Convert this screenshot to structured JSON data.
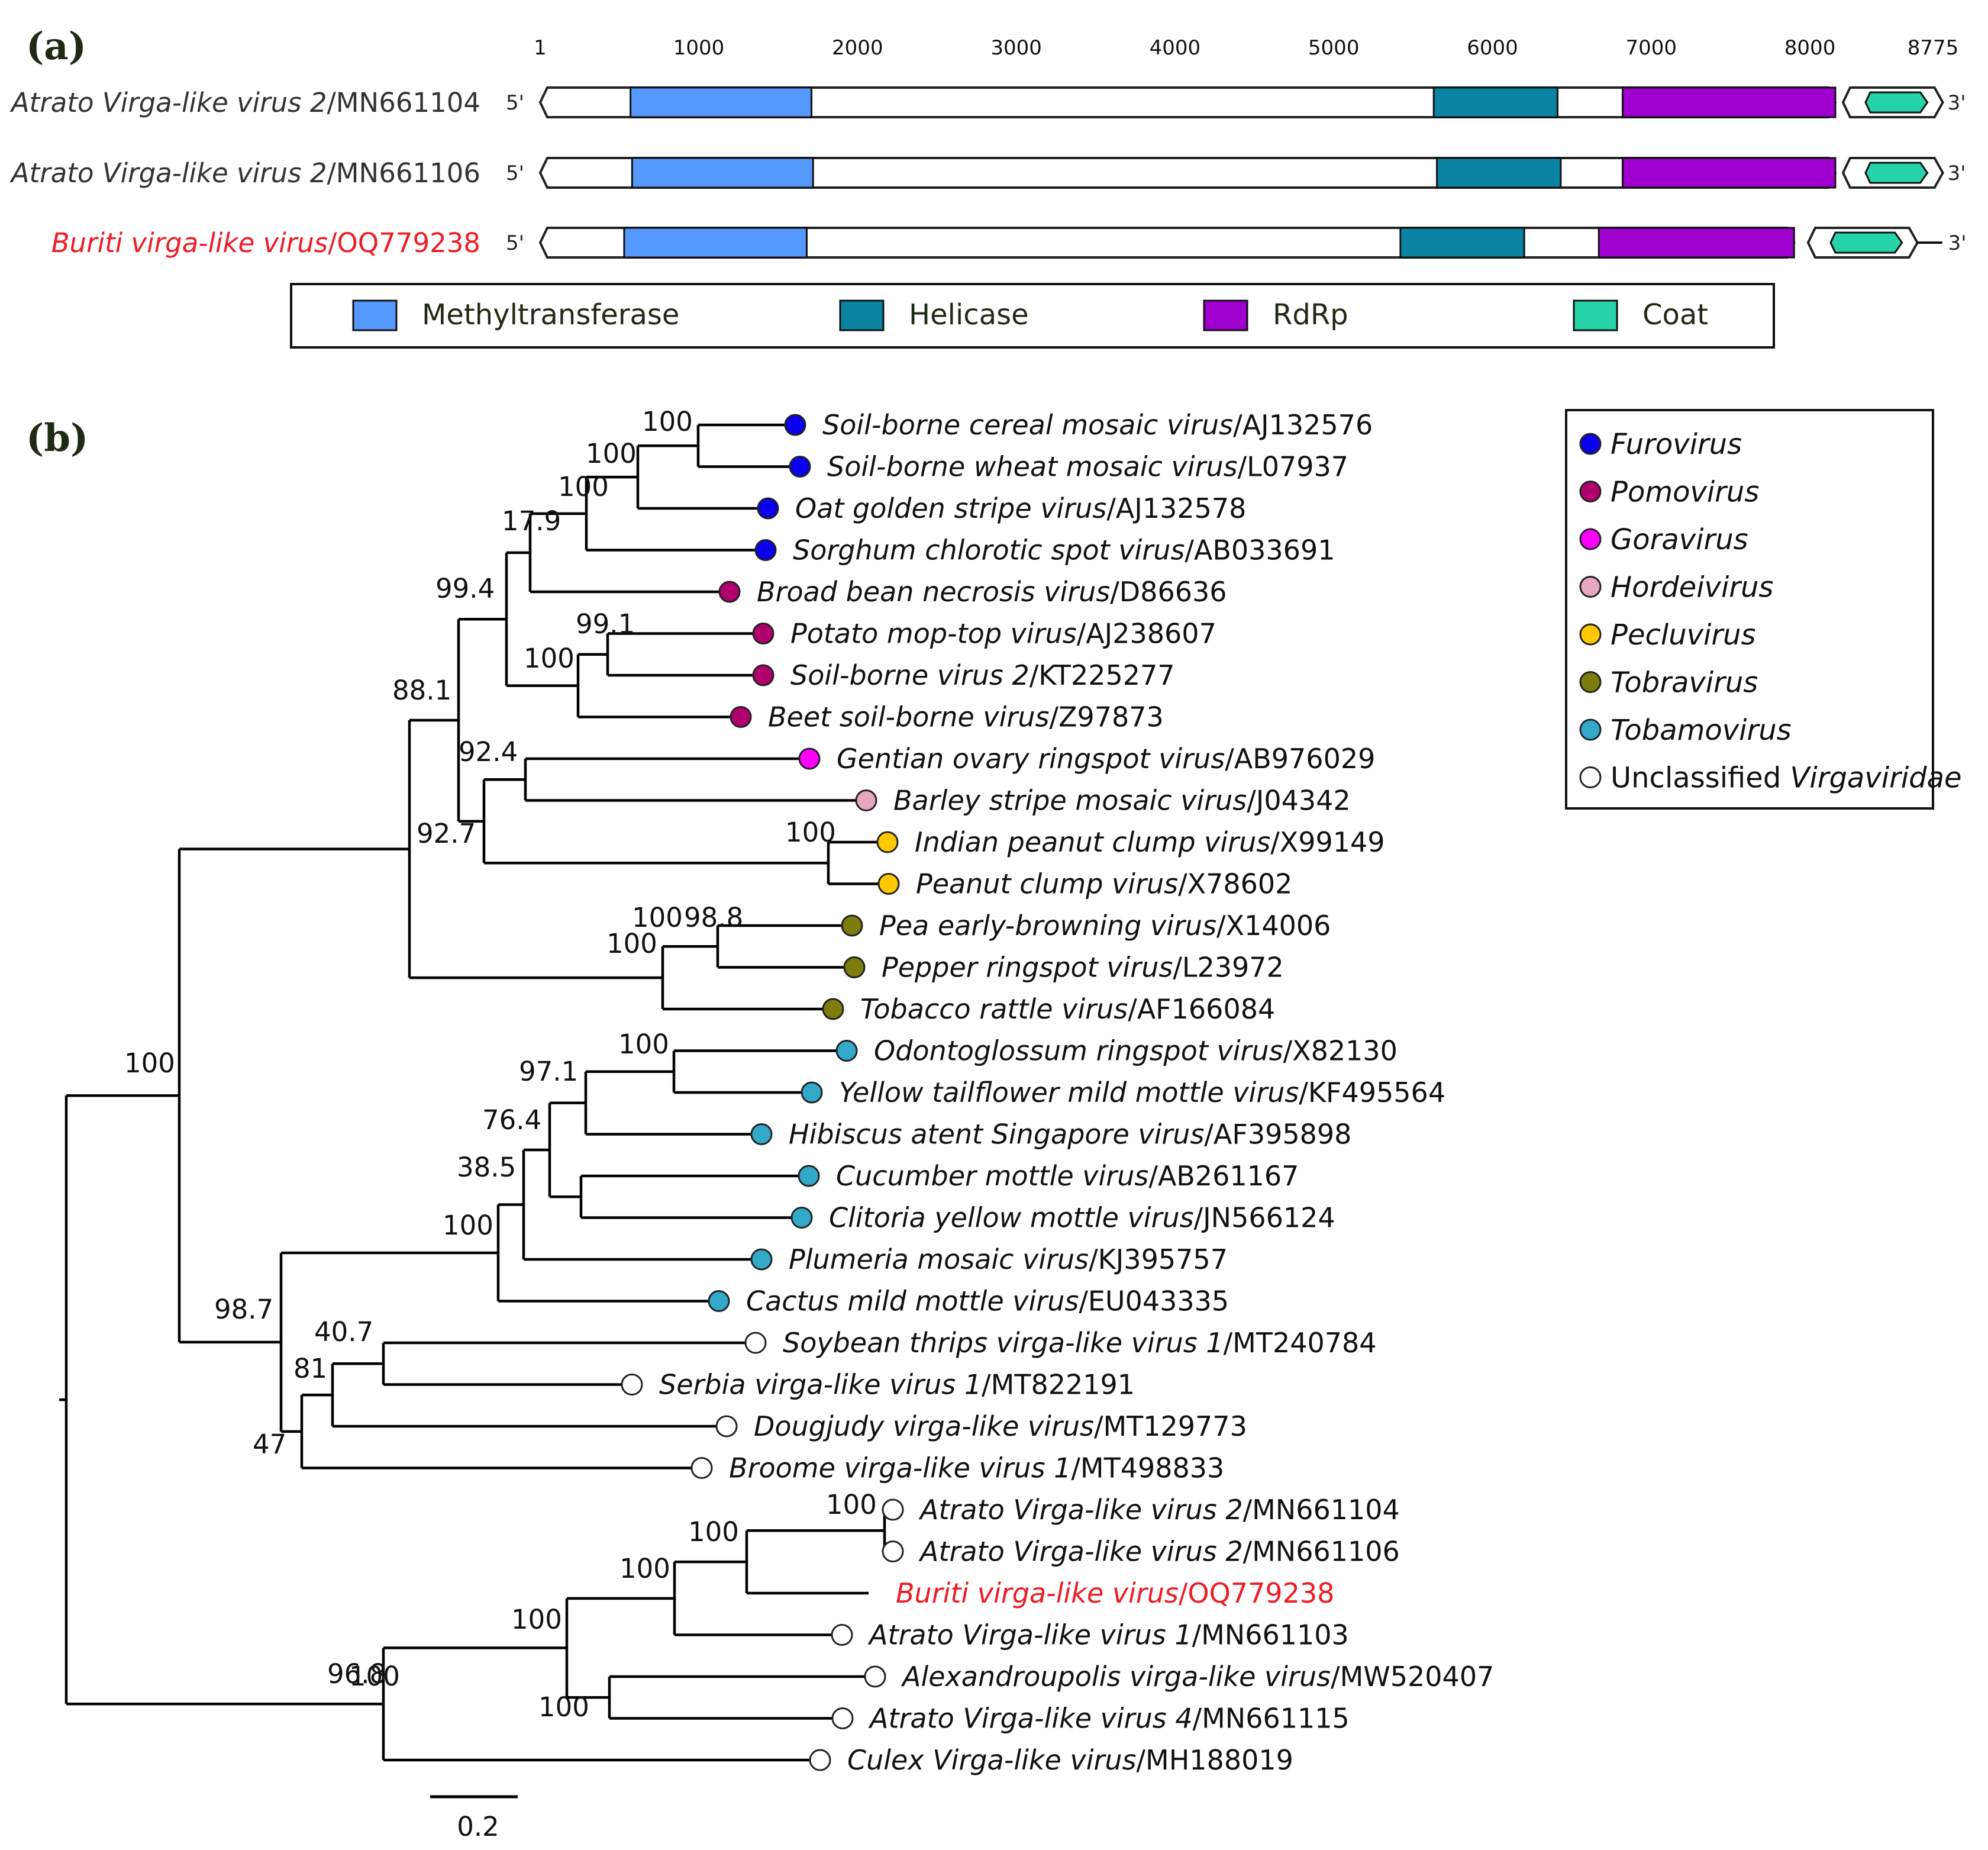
{
  "panel_a": {
    "label": "a",
    "axis_ticks": [
      "1",
      "1000",
      "2000",
      "3000",
      "4000",
      "5000",
      "6000",
      "7000",
      "8000",
      "8775"
    ],
    "five_prime": "5'",
    "three_prime": "3'",
    "genome_length": 8775,
    "genomes": [
      {
        "name": "Atrato Virga-like virus 2",
        "accession": "/MN661104",
        "highlight": false,
        "domains": {
          "methyltransferase": [
            570,
            1710
          ],
          "helicase": [
            5630,
            6410
          ],
          "rdrp": [
            6820,
            8160
          ],
          "coat": [
            8350,
            8740
          ]
        }
      },
      {
        "name": "Atrato Virga-like virus 2",
        "accession": "/MN661106",
        "highlight": false,
        "domains": {
          "methyltransferase": [
            580,
            1720
          ],
          "helicase": [
            5650,
            6430
          ],
          "rdrp": [
            6820,
            8160
          ],
          "coat": [
            8350,
            8740
          ]
        }
      },
      {
        "name": "Buriti virga-like virus",
        "accession": "/OQ779238",
        "highlight": true,
        "domains": {
          "methyltransferase": [
            530,
            1680
          ],
          "helicase": [
            5420,
            6200
          ],
          "rdrp": [
            6670,
            7900
          ],
          "coat": [
            8130,
            8580
          ]
        }
      }
    ],
    "legend": [
      {
        "label": "Methyltransferase",
        "color": "#5599ff"
      },
      {
        "label": "Helicase",
        "color": "#0a84a2"
      },
      {
        "label": "RdRp",
        "color": "#a000d0"
      },
      {
        "label": "Coat",
        "color": "#26d3a8"
      }
    ]
  },
  "panel_b": {
    "label": "b",
    "scale_bar": "0.2",
    "genus_legend": [
      {
        "label": "Furovirus",
        "italic": "Furovirus",
        "plain": "",
        "color": "#0b00ee"
      },
      {
        "label": "Pomovirus",
        "italic": "Pomovirus",
        "plain": "",
        "color": "#b0006e"
      },
      {
        "label": "Goravirus",
        "italic": "Goravirus",
        "plain": "",
        "color": "#ff00ff"
      },
      {
        "label": "Hordeivirus",
        "italic": "Hordeivirus",
        "plain": "",
        "color": "#e9a6c1"
      },
      {
        "label": "Pecluvirus",
        "italic": "Pecluvirus",
        "plain": "",
        "color": "#ffc800"
      },
      {
        "label": "Tobravirus",
        "italic": "Tobravirus",
        "plain": "",
        "color": "#7d7d0e"
      },
      {
        "label": "Tobamovirus",
        "italic": "Tobamovirus",
        "plain": "",
        "color": "#33a9c9"
      },
      {
        "label": "Unclassified Virgaviridae",
        "italic": "Virgaviridae",
        "plain": "Unclassified ",
        "color": "#ffffff"
      }
    ],
    "taxa": [
      {
        "name": "Soil-borne cereal mosaic virus",
        "accession": "/AJ132576",
        "genus": "Furovirus"
      },
      {
        "name": "Soil-borne wheat mosaic virus",
        "accession": "/L07937",
        "genus": "Furovirus"
      },
      {
        "name": "Oat golden stripe virus",
        "accession": "/AJ132578",
        "genus": "Furovirus"
      },
      {
        "name": "Sorghum chlorotic spot virus",
        "accession": "/AB033691",
        "genus": "Furovirus"
      },
      {
        "name": "Broad bean necrosis virus",
        "accession": "/D86636",
        "genus": "Pomovirus"
      },
      {
        "name": "Potato mop-top virus",
        "accession": "/AJ238607",
        "genus": "Pomovirus"
      },
      {
        "name": "Soil-borne virus 2",
        "accession": "/KT225277",
        "genus": "Pomovirus"
      },
      {
        "name": "Beet soil-borne virus",
        "accession": "/Z97873",
        "genus": "Pomovirus"
      },
      {
        "name": "Gentian ovary ringspot virus",
        "accession": "/AB976029",
        "genus": "Goravirus"
      },
      {
        "name": "Barley stripe mosaic virus",
        "accession": "/J04342",
        "genus": "Hordeivirus"
      },
      {
        "name": "Indian peanut clump virus",
        "accession": "/X99149",
        "genus": "Pecluvirus"
      },
      {
        "name": "Peanut clump virus",
        "accession": "/X78602",
        "genus": "Pecluvirus"
      },
      {
        "name": "Pea early-browning virus",
        "accession": "/X14006",
        "genus": "Tobravirus"
      },
      {
        "name": "Pepper ringspot virus",
        "accession": "/L23972",
        "genus": "Tobravirus"
      },
      {
        "name": "Tobacco rattle virus",
        "accession": "/AF166084",
        "genus": "Tobravirus"
      },
      {
        "name": "Odontoglossum ringspot virus",
        "accession": "/X82130",
        "genus": "Tobamovirus"
      },
      {
        "name": "Yellow tailflower mild mottle virus",
        "accession": "/KF495564",
        "genus": "Tobamovirus"
      },
      {
        "name": "Hibiscus atent Singapore virus",
        "accession": "/AF395898",
        "genus": "Tobamovirus"
      },
      {
        "name": "Cucumber mottle virus",
        "accession": "/AB261167",
        "genus": "Tobamovirus"
      },
      {
        "name": "Clitoria yellow mottle virus",
        "accession": "/JN566124",
        "genus": "Tobamovirus"
      },
      {
        "name": "Plumeria mosaic virus",
        "accession": "/KJ395757",
        "genus": "Tobamovirus"
      },
      {
        "name": "Cactus mild mottle virus",
        "accession": "/EU043335",
        "genus": "Tobamovirus"
      },
      {
        "name": "Soybean thrips virga-like virus 1",
        "accession": "/MT240784",
        "genus": "Unclassified"
      },
      {
        "name": "Serbia virga-like virus 1",
        "accession": "/MT822191",
        "genus": "Unclassified"
      },
      {
        "name": "Dougjudy virga-like virus",
        "accession": "/MT129773",
        "genus": "Unclassified"
      },
      {
        "name": "Broome virga-like virus 1",
        "accession": "/MT498833",
        "genus": "Unclassified"
      },
      {
        "name": "Atrato Virga-like virus 2",
        "accession": "/MN661104",
        "genus": "Unclassified"
      },
      {
        "name": "Atrato Virga-like virus 2",
        "accession": "/MN661106",
        "genus": "Unclassified"
      },
      {
        "name": "Buriti virga-like virus",
        "accession": "/OQ779238",
        "genus": "None",
        "highlight": true
      },
      {
        "name": "Atrato Virga-like virus 1",
        "accession": "/MN661103",
        "genus": "Unclassified"
      },
      {
        "name": "Alexandroupolis virga-like virus",
        "accession": "/MW520407",
        "genus": "Unclassified"
      },
      {
        "name": "Atrato Virga-like virus 4",
        "accession": "/MN661115",
        "genus": "Unclassified"
      },
      {
        "name": "Culex Virga-like virus",
        "accession": "/MH188019",
        "genus": "Unclassified"
      }
    ],
    "bootstrap_values": [
      "100",
      "100",
      "100",
      "17.9",
      "99.4",
      "99.1",
      "100",
      "88.1",
      "92.4",
      "92.7",
      "100",
      "100",
      "98.8",
      "100",
      "100",
      "100",
      "97.1",
      "76.4",
      "38.5",
      "100",
      "98.7",
      "40.7",
      "81",
      "47",
      "100",
      "100",
      "100",
      "100",
      "96.8",
      "100",
      "100"
    ]
  }
}
